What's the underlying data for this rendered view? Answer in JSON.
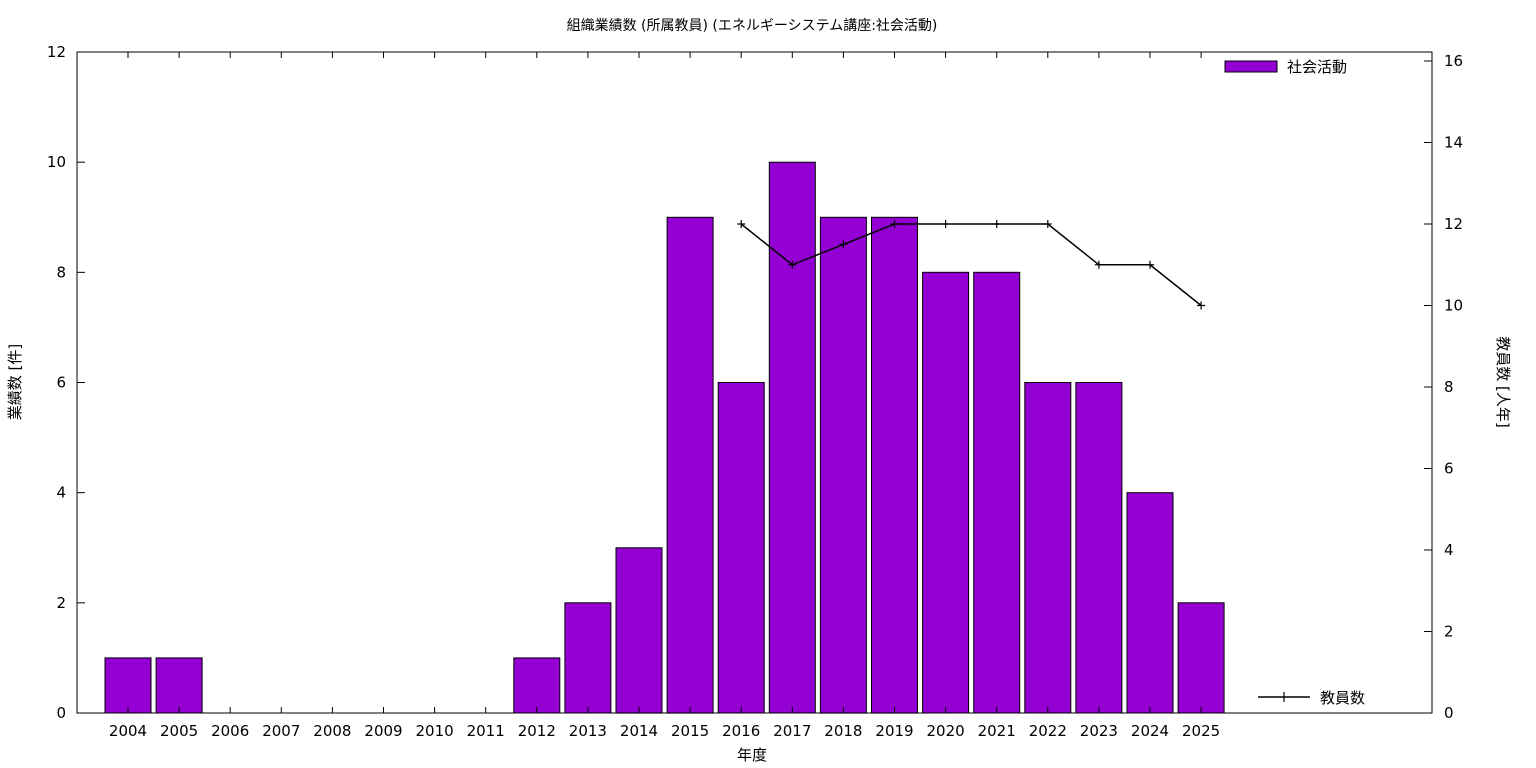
{
  "chart_data": {
    "type": "bar",
    "title": "組織業績数 (所属教員) (エネルギーシステム講座:社会活動)",
    "xlabel": "年度",
    "ylabel": "業績数 [件]",
    "y2label": "教員数 [人年]",
    "categories": [
      "2004",
      "2005",
      "2006",
      "2007",
      "2008",
      "2009",
      "2010",
      "2011",
      "2012",
      "2013",
      "2014",
      "2015",
      "2016",
      "2017",
      "2018",
      "2019",
      "2020",
      "2021",
      "2022",
      "2023",
      "2024",
      "2025"
    ],
    "ylim": [
      0,
      12
    ],
    "y2lim": [
      0,
      16
    ],
    "yticks": [
      "0",
      "2",
      "4",
      "6",
      "8",
      "10",
      "12"
    ],
    "y2ticks": [
      "0",
      "2",
      "4",
      "6",
      "8",
      "10",
      "12",
      "14",
      "16"
    ],
    "grid": false,
    "series": [
      {
        "name": "社会活動",
        "type": "bar",
        "axis": "left",
        "color": "#9400d3",
        "values": [
          1,
          1,
          0,
          0,
          0,
          0,
          0,
          0,
          1,
          2,
          3,
          9,
          6,
          10,
          9,
          9,
          8,
          8,
          6,
          6,
          4,
          2
        ]
      },
      {
        "name": "教員数",
        "type": "line",
        "axis": "right",
        "color": "#000000",
        "marker": "plus",
        "values": [
          null,
          null,
          null,
          null,
          null,
          null,
          null,
          null,
          null,
          null,
          null,
          null,
          12,
          11,
          11.5,
          12,
          12,
          12,
          12,
          11,
          11,
          10
        ]
      }
    ],
    "legend": [
      "top-right",
      "bottom-right"
    ]
  }
}
